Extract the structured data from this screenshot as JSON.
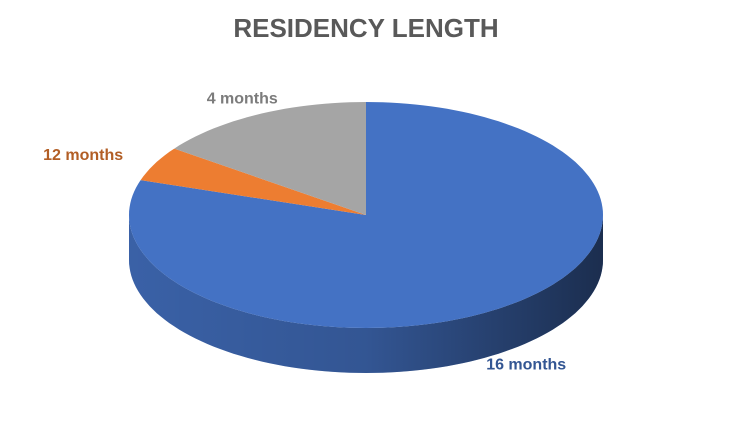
{
  "chart_data": {
    "type": "pie3d",
    "title": "RESIDENCY LENGTH",
    "categories": [
      "16 months",
      "12 months",
      "4 months"
    ],
    "values": [
      80,
      5,
      15
    ],
    "colors": [
      "#4472c4",
      "#ed7d31",
      "#a5a5a5"
    ]
  }
}
